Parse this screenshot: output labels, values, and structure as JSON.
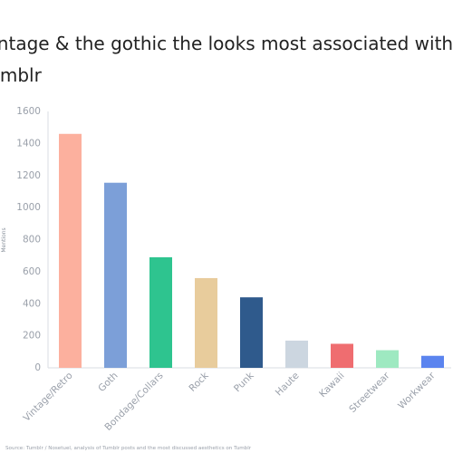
{
  "title": "Vintage & the gothic the looks most associated with Tumblr",
  "source": "Source: Tumblr / Nosetuel, analysis of Tumblr posts and the most discussed aesthetics on Tumblr",
  "chart_data": {
    "type": "bar",
    "title": "Vintage & the gothic the looks most associated with Tumblr",
    "xlabel": "",
    "ylabel": "Mentions",
    "categories": [
      "Vintage/Retro",
      "Goth",
      "Bondage/Collars",
      "Rock",
      "Punk",
      "Haute",
      "Kawaii",
      "Streetwear",
      "Workwear"
    ],
    "values": [
      1460,
      1155,
      690,
      560,
      440,
      170,
      150,
      110,
      75
    ],
    "colors": [
      "#fcb09e",
      "#7c9fd8",
      "#2ec48f",
      "#e8cc9c",
      "#2f5a8c",
      "#ccd6e0",
      "#ef6d70",
      "#9ee9c1",
      "#5b84ef"
    ],
    "yticks": [
      0,
      200,
      400,
      600,
      800,
      1000,
      1200,
      1400,
      1600
    ],
    "ylim": [
      0,
      1600
    ],
    "grid": false,
    "legend": "none"
  }
}
